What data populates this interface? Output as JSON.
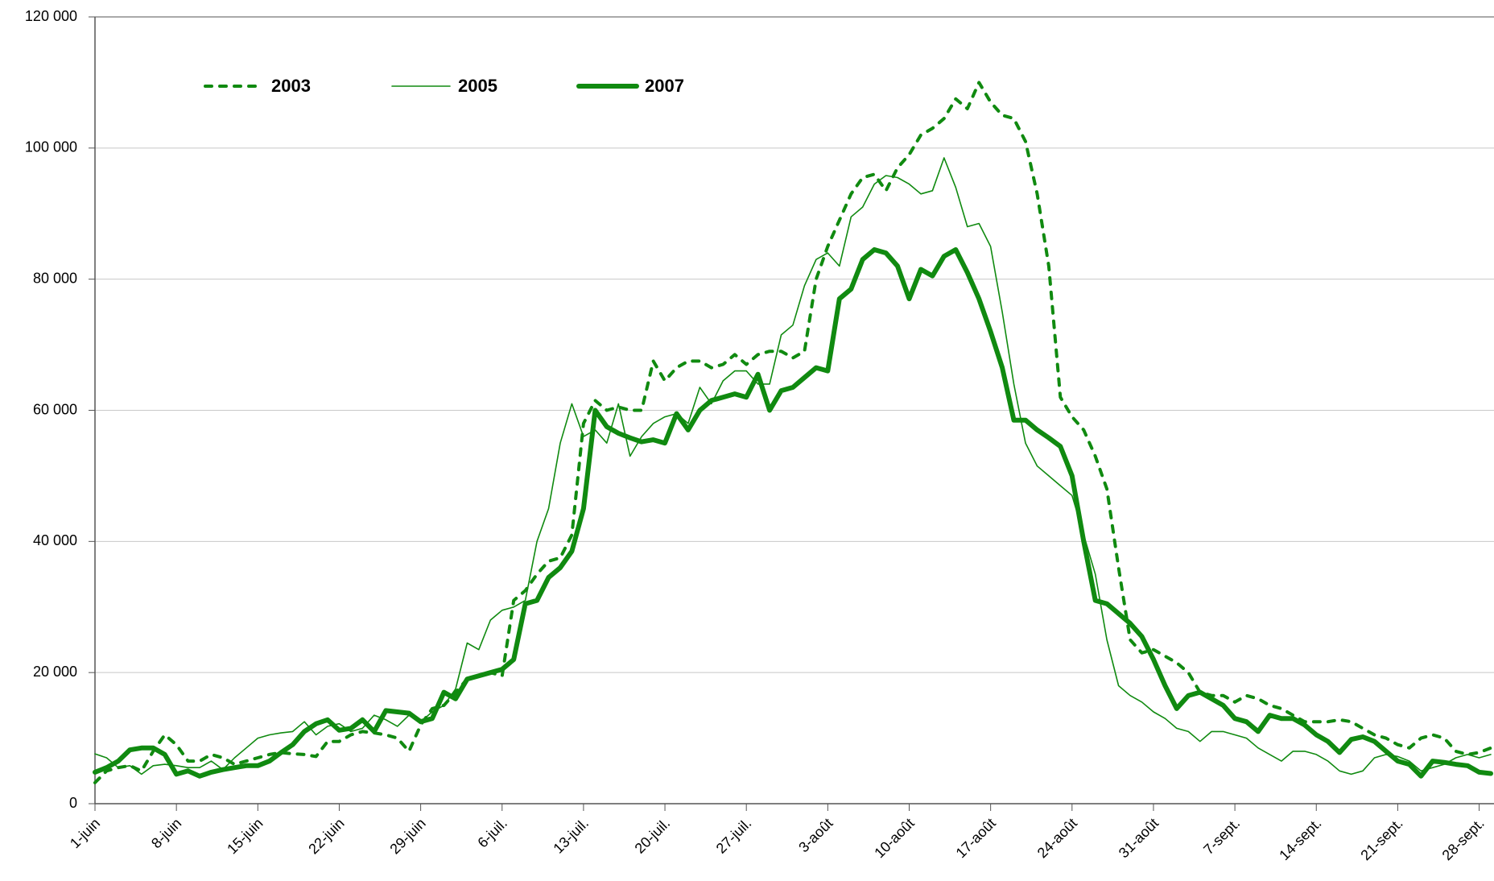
{
  "chart_data": {
    "type": "line",
    "categories": [
      "1-juin",
      null,
      null,
      null,
      null,
      null,
      null,
      "8-juin",
      null,
      null,
      null,
      null,
      null,
      null,
      "15-juin",
      null,
      null,
      null,
      null,
      null,
      null,
      "22-juin",
      null,
      null,
      null,
      null,
      null,
      null,
      "29-juin",
      null,
      null,
      null,
      null,
      null,
      null,
      "6-juil.",
      null,
      null,
      null,
      null,
      null,
      null,
      "13-juil.",
      null,
      null,
      null,
      null,
      null,
      null,
      "20-juil.",
      null,
      null,
      null,
      null,
      null,
      null,
      "27-juil.",
      null,
      null,
      null,
      null,
      null,
      null,
      "3-août",
      null,
      null,
      null,
      null,
      null,
      null,
      "10-août",
      null,
      null,
      null,
      null,
      null,
      null,
      "17-août",
      null,
      null,
      null,
      null,
      null,
      null,
      "24-août",
      null,
      null,
      null,
      null,
      null,
      null,
      "31-août",
      null,
      null,
      null,
      null,
      null,
      null,
      "7-sept.",
      null,
      null,
      null,
      null,
      null,
      null,
      "14-sept.",
      null,
      null,
      null,
      null,
      null,
      null,
      "21-sept.",
      null,
      null,
      null,
      null,
      null,
      null,
      "28-sept.",
      null
    ],
    "series": [
      {
        "name": "2003",
        "color": "#108a10",
        "dash": true,
        "width": 4,
        "values": [
          3200,
          5000,
          5500,
          5800,
          5000,
          8000,
          10500,
          9000,
          6500,
          6500,
          7500,
          7000,
          6000,
          6500,
          7000,
          7500,
          7800,
          7600,
          7500,
          7200,
          9500,
          9500,
          10500,
          11000,
          10800,
          10500,
          10000,
          8000,
          12000,
          14500,
          15000,
          17000,
          19000,
          19500,
          20000,
          19500,
          31000,
          32500,
          35000,
          37000,
          37500,
          41000,
          58000,
          61500,
          60000,
          60500,
          60000,
          60000,
          67500,
          64500,
          66500,
          67500,
          67500,
          66500,
          67000,
          68500,
          67000,
          68500,
          69000,
          69000,
          68000,
          69000,
          80000,
          85000,
          89000,
          93000,
          95500,
          96000,
          93500,
          97000,
          99000,
          102000,
          103000,
          104500,
          107500,
          106000,
          110000,
          107000,
          105000,
          104500,
          101000,
          93000,
          82000,
          62000,
          59000,
          57000,
          53000,
          48000,
          36000,
          25000,
          23000,
          23500,
          22500,
          21500,
          20000,
          17000,
          16500,
          16500,
          15500,
          16500,
          16000,
          15000,
          14500,
          13500,
          12500,
          12500,
          12500,
          12800,
          12500,
          11500,
          10500,
          10000,
          9000,
          8500,
          10000,
          10500,
          10000,
          8000,
          7500,
          7800,
          8500
        ]
      },
      {
        "name": "2005",
        "color": "#108a10",
        "dash": false,
        "width": 1.6,
        "values": [
          7600,
          7000,
          5500,
          5800,
          4500,
          5800,
          6000,
          5800,
          5500,
          5500,
          6500,
          5200,
          7000,
          8500,
          10000,
          10500,
          10800,
          11000,
          12500,
          10500,
          11800,
          12200,
          11000,
          11500,
          13500,
          12800,
          11800,
          13500,
          12500,
          14000,
          15000,
          17500,
          24500,
          23500,
          28000,
          29500,
          30000,
          31000,
          40000,
          45000,
          55000,
          61000,
          56000,
          57000,
          55000,
          61000,
          53000,
          56000,
          58000,
          59000,
          59500,
          58000,
          63500,
          61000,
          64500,
          66000,
          66000,
          64000,
          64000,
          71500,
          73000,
          79000,
          83000,
          84000,
          82000,
          89500,
          91000,
          94500,
          95800,
          95500,
          94500,
          93000,
          93500,
          98500,
          94000,
          88000,
          88500,
          85000,
          75000,
          64000,
          55000,
          51500,
          50000,
          48500,
          47000,
          41000,
          35000,
          25000,
          18000,
          16500,
          15500,
          14000,
          13000,
          11500,
          11000,
          9500,
          11000,
          11000,
          10500,
          10000,
          8500,
          7500,
          6500,
          8000,
          8000,
          7500,
          6500,
          5000,
          4500,
          5000,
          7000,
          7500,
          7200,
          6500,
          5000,
          5500,
          6000,
          7000,
          7500,
          7000,
          7500
        ]
      },
      {
        "name": "2007",
        "color": "#108a10",
        "dash": false,
        "width": 6,
        "values": [
          4800,
          5500,
          6500,
          8200,
          8500,
          8500,
          7500,
          4500,
          5000,
          4200,
          4800,
          5200,
          5500,
          5800,
          5800,
          6500,
          7800,
          9000,
          11000,
          12200,
          12800,
          11200,
          11500,
          12800,
          11000,
          14200,
          14000,
          13800,
          12500,
          13000,
          17000,
          16000,
          19000,
          19500,
          20000,
          20500,
          22000,
          30500,
          31000,
          34500,
          36000,
          38500,
          45000,
          60000,
          57500,
          56500,
          55800,
          55200,
          55500,
          55000,
          59500,
          57000,
          60000,
          61500,
          62000,
          62500,
          62000,
          65500,
          60000,
          63000,
          63500,
          65000,
          66500,
          66000,
          77000,
          78500,
          83000,
          84500,
          84000,
          82000,
          77000,
          81500,
          80500,
          83500,
          84500,
          81000,
          77000,
          72000,
          66500,
          58500,
          58500,
          57000,
          55800,
          54500,
          50000,
          40000,
          31000,
          30500,
          29000,
          27500,
          25500,
          22000,
          18000,
          14500,
          16500,
          17000,
          16000,
          15000,
          13000,
          12500,
          11000,
          13500,
          13000,
          13000,
          12000,
          10500,
          9500,
          7800,
          9800,
          10200,
          9500,
          8000,
          6500,
          6000,
          4200,
          6500,
          6300,
          6000,
          5800,
          4800,
          4600
        ]
      }
    ],
    "ylim": [
      0,
      120000
    ],
    "yticks": [
      {
        "value": 0,
        "label": "0"
      },
      {
        "value": 20000,
        "label": "20 000"
      },
      {
        "value": 40000,
        "label": "40 000"
      },
      {
        "value": 60000,
        "label": "60 000"
      },
      {
        "value": 80000,
        "label": "80 000"
      },
      {
        "value": 100000,
        "label": "100 000"
      },
      {
        "value": 120000,
        "label": "120 000"
      }
    ],
    "grid": true,
    "legend": "top-left"
  }
}
